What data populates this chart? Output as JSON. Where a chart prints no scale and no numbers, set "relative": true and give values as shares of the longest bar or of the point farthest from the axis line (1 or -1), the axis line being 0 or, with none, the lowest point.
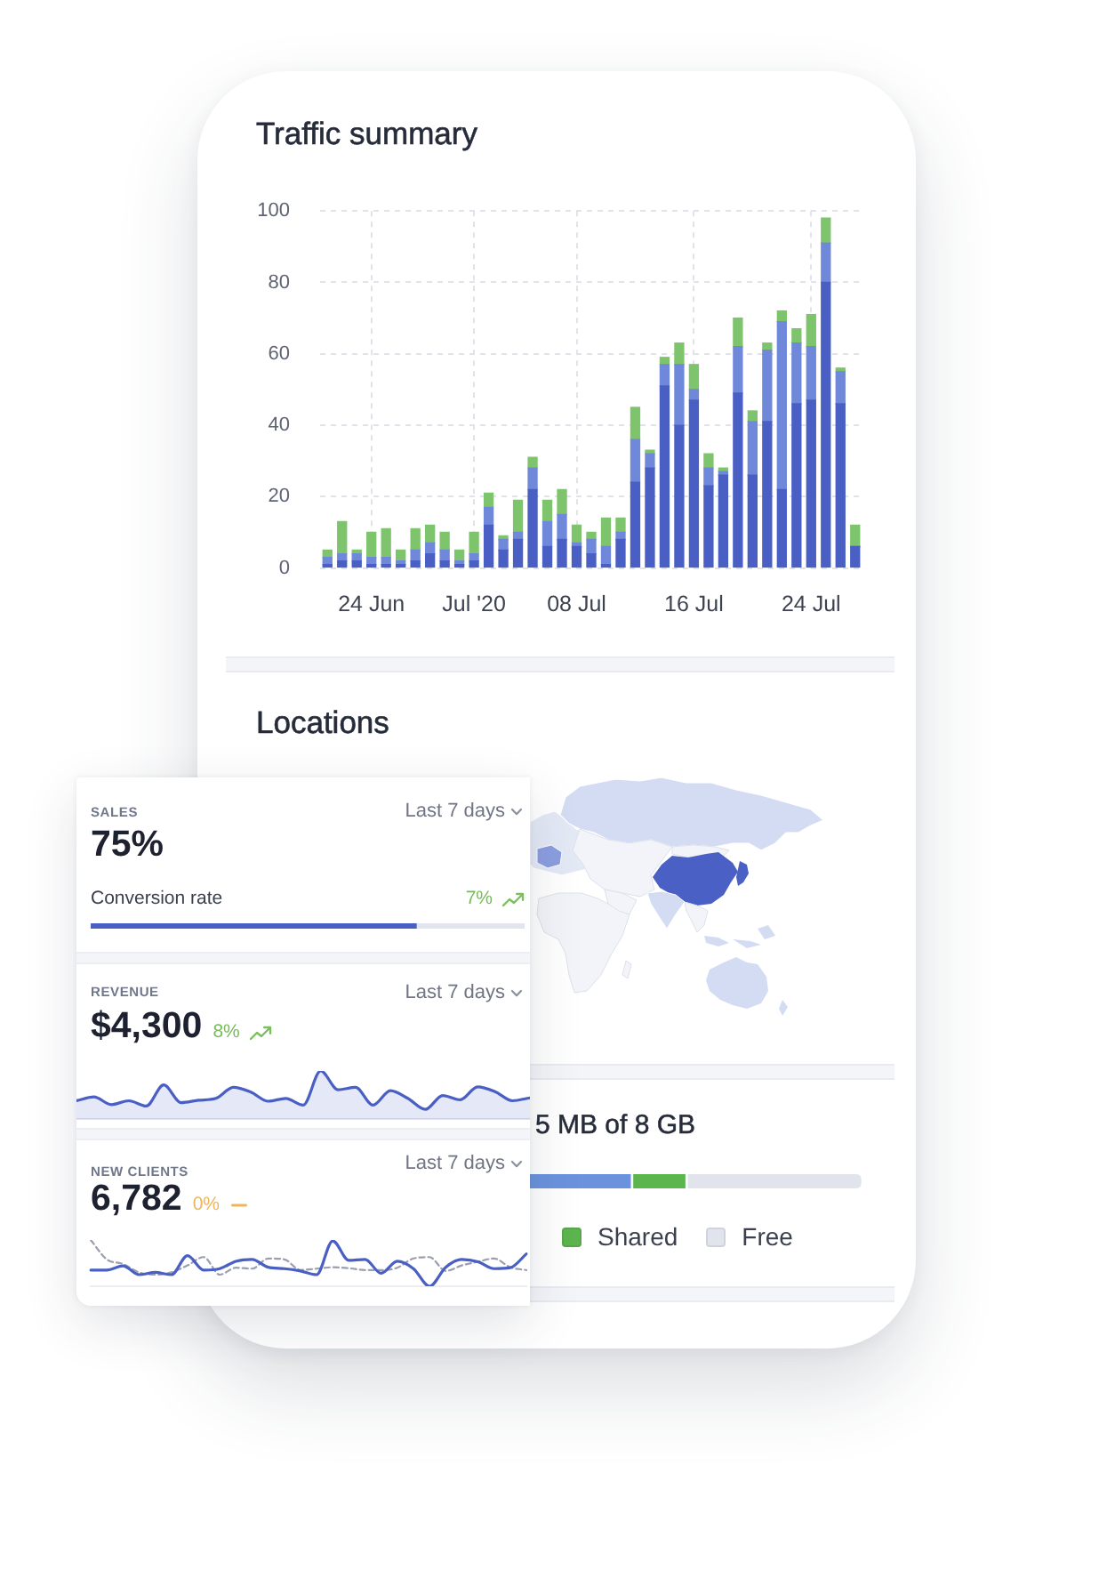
{
  "chart_data": [
    {
      "type": "bar",
      "title": "Traffic summary",
      "stacked": true,
      "categories": [
        null,
        null,
        null,
        "24 Jun",
        null,
        null,
        null,
        null,
        null,
        null,
        "Jul '20",
        null,
        null,
        null,
        null,
        null,
        null,
        "08 Jul",
        null,
        null,
        null,
        null,
        null,
        null,
        null,
        "16 Jul",
        null,
        null,
        null,
        null,
        null,
        null,
        null,
        "24 Jul",
        null,
        null,
        null
      ],
      "series": [
        {
          "color": "#4a5fc3",
          "values": [
            1,
            2,
            2,
            1,
            1,
            1,
            2,
            4,
            2,
            1,
            2,
            12,
            5,
            8,
            22,
            6,
            8,
            6,
            4,
            1,
            8,
            24,
            28,
            51,
            40,
            47,
            23,
            26,
            49,
            26,
            41,
            22,
            46,
            47,
            80,
            46,
            6
          ]
        },
        {
          "color": "#7088d9",
          "values": [
            2,
            2,
            2,
            2,
            2,
            1,
            3,
            3,
            3,
            1,
            2,
            5,
            3,
            2,
            6,
            7,
            7,
            1,
            4,
            5,
            2,
            12,
            4,
            6,
            17,
            3,
            5,
            1,
            13,
            15,
            20,
            47,
            17,
            15,
            11,
            9,
            0
          ]
        },
        {
          "color": "#7ec46c",
          "values": [
            2,
            9,
            1,
            7,
            8,
            3,
            6,
            5,
            5,
            3,
            6,
            4,
            1,
            9,
            3,
            6,
            7,
            5,
            2,
            8,
            4,
            9,
            1,
            2,
            6,
            7,
            4,
            1,
            8,
            3,
            2,
            3,
            4,
            9,
            7,
            1,
            6
          ]
        }
      ],
      "ylim": [
        0,
        100
      ],
      "yticks": [
        0,
        20,
        40,
        60,
        80,
        100
      ],
      "grid": true
    },
    {
      "type": "other",
      "title": "Locations"
    },
    {
      "type": "bar",
      "orientation": "horizontal",
      "stacked": true,
      "relative": true,
      "title": "SALES",
      "subtitle": "75%",
      "annotations": [
        "Last 7 days",
        "Conversion rate",
        "7%"
      ],
      "categories": [
        null
      ],
      "series": [
        {
          "color": "#4a5fc3",
          "values": [
            0.75
          ]
        },
        {
          "color": "#e2e5ed",
          "values": [
            0.25
          ]
        }
      ]
    },
    {
      "type": "area",
      "relative": true,
      "title": "REVENUE",
      "subtitle": "$4,300",
      "annotations": [
        "Last 7 days",
        "8%"
      ],
      "categories": [
        null,
        null,
        null,
        null,
        null,
        null,
        null,
        null,
        null,
        null,
        null,
        null,
        null,
        null,
        null,
        null,
        null,
        null,
        null,
        null,
        null,
        null,
        null,
        null,
        null,
        null,
        null
      ],
      "series": [
        {
          "color": "#4a5fc3",
          "values": [
            0.38,
            0.46,
            0.3,
            0.38,
            0.27,
            0.71,
            0.34,
            0.39,
            0.43,
            0.66,
            0.56,
            0.37,
            0.43,
            0.29,
            1,
            0.61,
            0.66,
            0.29,
            0.59,
            0.43,
            0.2,
            0.49,
            0.4,
            0.67,
            0.57,
            0.38,
            0.44
          ]
        }
      ]
    },
    {
      "type": "line",
      "relative": true,
      "title": "NEW CLIENTS",
      "subtitle": "6,782",
      "annotations": [
        "Last 7 days",
        "0%"
      ],
      "categories": [
        null,
        null,
        null,
        null,
        null,
        null,
        null,
        null,
        null,
        null,
        null,
        null,
        null,
        null,
        null,
        null,
        null,
        null,
        null,
        null,
        null,
        null,
        null,
        null,
        null,
        null,
        null,
        null
      ],
      "series": [
        {
          "color": "#4a5fc3",
          "values": [
            0.35,
            0.35,
            0.44,
            0.25,
            0.3,
            0.25,
            0.66,
            0.35,
            0.38,
            0.54,
            0.58,
            0.41,
            0.38,
            0.33,
            0.25,
            0.98,
            0.56,
            0.58,
            0.28,
            0.54,
            0.38,
            0,
            0.41,
            0.58,
            0.53,
            0.38,
            0.4,
            0.7
          ]
        },
        {
          "color": "#9b9faf",
          "line_style": "dashed",
          "values": [
            1,
            0.58,
            0.48,
            0.3,
            0.25,
            0.3,
            0.45,
            0.63,
            0.25,
            0.4,
            0.38,
            0.6,
            0.58,
            0.35,
            0.38,
            0.41,
            0.39,
            0.35,
            0.35,
            0.4,
            0.6,
            0.63,
            0.33,
            0.45,
            0.53,
            0.6,
            0.41,
            0.35
          ]
        }
      ]
    },
    {
      "type": "bar",
      "orientation": "horizontal",
      "stacked": true,
      "relative": true,
      "title": "5 MB of 8 GB",
      "categories": [
        null
      ],
      "series": [
        {
          "color": "#6b93dd",
          "values": [
            0.62
          ]
        },
        {
          "name": "Shared",
          "color": "#5db54f",
          "values": [
            0.09
          ]
        },
        {
          "name": "Free",
          "color": "#e1e4ec",
          "values": [
            0.29
          ]
        }
      ],
      "legend": "bottom"
    }
  ]
}
